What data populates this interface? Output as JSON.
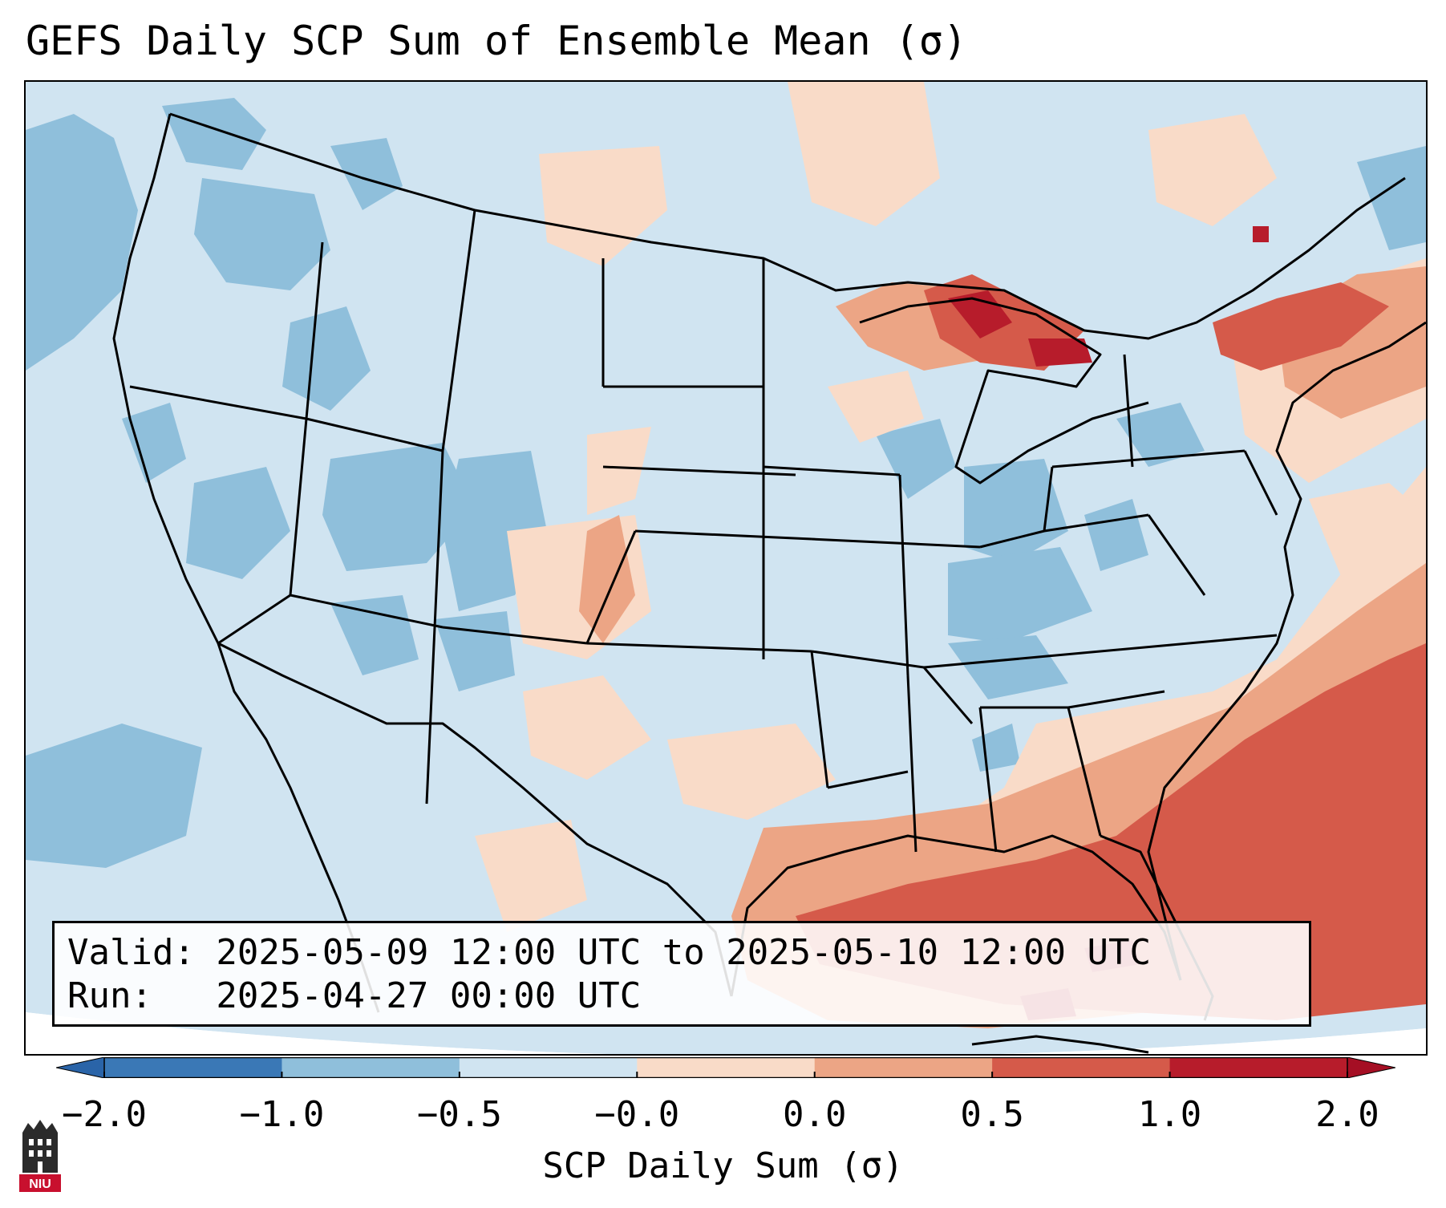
{
  "title": "GEFS Daily SCP Sum of Ensemble Mean (σ)",
  "info": {
    "valid_line": "Valid: 2025-05-09 12:00 UTC to 2025-05-10 12:00 UTC",
    "run_line": "Run:   2025-04-27 00:00 UTC"
  },
  "colorbar": {
    "label": "SCP Daily Sum (σ)",
    "ticks": [
      "−2.0",
      "−1.0",
      "−0.5",
      "−0.0",
      "0.0",
      "0.5",
      "1.0",
      "2.0"
    ],
    "colors": [
      "#3a78b6",
      "#8fbfdb",
      "#d0e4f1",
      "#f9dbc8",
      "#eca585",
      "#d55a4a",
      "#b71c2b"
    ],
    "under_color": "#2a64a8",
    "over_color": "#a50f24"
  },
  "map": {
    "region": "Contiguous United States",
    "background_class_color": "#d0e4f1",
    "land_outside_color": "#ffffff"
  },
  "logo": {
    "text": "NIU",
    "name": "niu-logo"
  }
}
